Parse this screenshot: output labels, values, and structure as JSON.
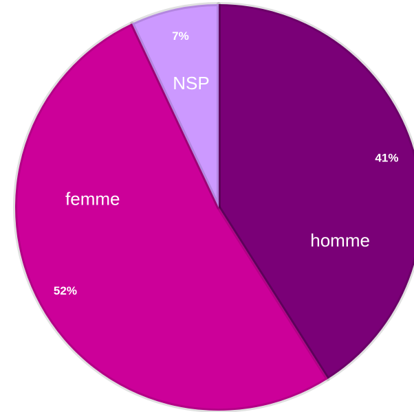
{
  "chart_data": {
    "type": "pie",
    "categories": [
      "homme",
      "femme",
      "NSP"
    ],
    "values": [
      41,
      52,
      7
    ],
    "value_labels": [
      "41%",
      "52%",
      "7%"
    ],
    "colors": [
      "#7a0077",
      "#cc0099",
      "#cc99ff"
    ],
    "start_angle": 0,
    "direction": "clockwise"
  }
}
